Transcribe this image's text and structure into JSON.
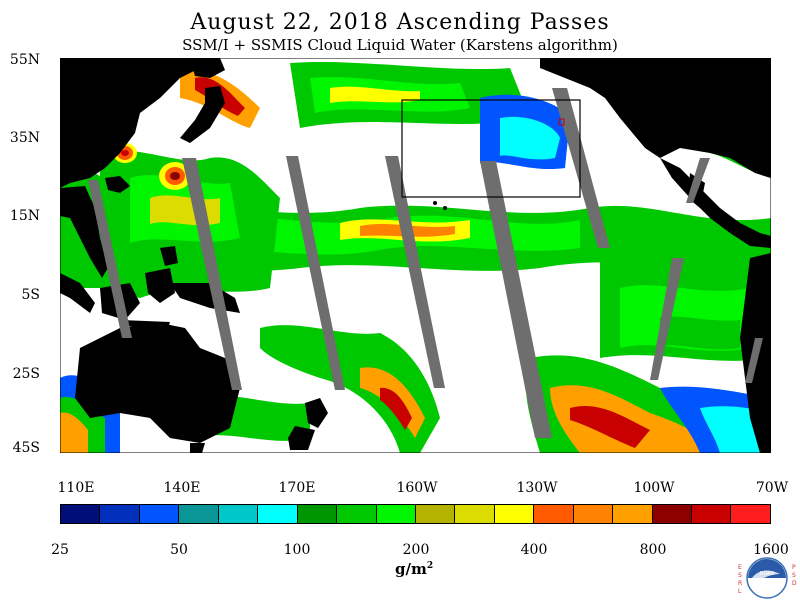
{
  "title": "August 22, 2018  Ascending Passes",
  "subtitle": "SSM/I + SSMIS Cloud Liquid Water (Karstens algorithm)",
  "lat_labels": [
    "55N",
    "35N",
    "15N",
    "5S",
    "25S",
    "45S"
  ],
  "lon_labels": [
    "110E",
    "140E",
    "170E",
    "160W",
    "130W",
    "100W",
    "70W"
  ],
  "colorbar": {
    "labels": [
      "25",
      "50",
      "100",
      "200",
      "400",
      "800",
      "1600"
    ],
    "colors": [
      "#000e7a",
      "#0030bc",
      "#0055ff",
      "#0a9696",
      "#00c8c8",
      "#00ffff",
      "#009600",
      "#00c800",
      "#00f500",
      "#b4b400",
      "#dcdc00",
      "#ffff00",
      "#ff5a00",
      "#ff8200",
      "#ffa000",
      "#8c0000",
      "#c80000",
      "#ff1e1e"
    ]
  },
  "units": "g/m²",
  "logo": {
    "name": "NOAA",
    "left_text": "ESRL",
    "right_text": "PSD"
  }
}
